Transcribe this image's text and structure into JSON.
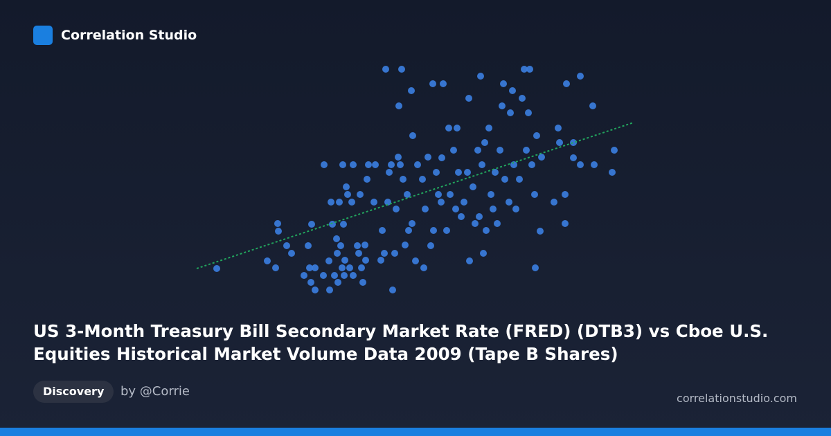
{
  "brand": "Correlation Studio",
  "tag": "Discovery",
  "author": "by @Corrie",
  "site": "correlationstudio.com",
  "chart_data": {
    "type": "scatter",
    "title": "US 3-Month Treasury Bill Secondary Market Rate (FRED) (DTB3) vs Cboe U.S. Equities Historical Market Volume Data 2009 (Tape B Shares)",
    "color": "#3b7ddd",
    "xlim": [
      0,
      640
    ],
    "ylim": [
      0,
      340
    ],
    "x": [
      33,
      106,
      118,
      121,
      122,
      134,
      141,
      159,
      165,
      167,
      169,
      170,
      175,
      175,
      187,
      188,
      195,
      196,
      198,
      200,
      203,
      206,
      207,
      208,
      210,
      212,
      214,
      215,
      216,
      217,
      218,
      220,
      222,
      225,
      228,
      230,
      230,
      236,
      238,
      240,
      242,
      244,
      247,
      248,
      250,
      252,
      260,
      262,
      270,
      272,
      275,
      277,
      280,
      282,
      285,
      287,
      290,
      292,
      295,
      296,
      298,
      300,
      302,
      305,
      308,
      310,
      314,
      315,
      316,
      320,
      323,
      330,
      332,
      334,
      338,
      342,
      345,
      346,
      350,
      353,
      357,
      358,
      360,
      365,
      368,
      370,
      375,
      378,
      380,
      382,
      386,
      390,
      395,
      397,
      398,
      403,
      406,
      410,
      412,
      414,
      416,
      418,
      420,
      422,
      426,
      429,
      432,
      435,
      438,
      442,
      445,
      447,
      449,
      455,
      457,
      460,
      462,
      465,
      470,
      474,
      477,
      480,
      483,
      485,
      488,
      492,
      493,
      495,
      500,
      502,
      520,
      526,
      528,
      536,
      536,
      538,
      548,
      548,
      558,
      558,
      576,
      578,
      604,
      607
    ],
    "values": [
      42,
      53,
      43,
      107,
      96,
      75,
      64,
      32,
      75,
      43,
      22,
      106,
      43,
      11,
      32,
      192,
      53,
      11,
      138,
      106,
      32,
      85,
      64,
      22,
      138,
      75,
      43,
      192,
      106,
      32,
      54,
      160,
      149,
      43,
      138,
      192,
      32,
      75,
      64,
      149,
      43,
      22,
      76,
      54,
      171,
      192,
      138,
      192,
      54,
      97,
      64,
      330,
      138,
      181,
      192,
      11,
      64,
      128,
      203,
      277,
      192,
      330,
      171,
      76,
      149,
      97,
      299,
      107,
      234,
      53,
      192,
      171,
      43,
      128,
      203,
      75,
      309,
      97,
      181,
      149,
      138,
      202,
      309,
      97,
      245,
      149,
      213,
      128,
      245,
      181,
      117,
      138,
      181,
      288,
      53,
      160,
      107,
      213,
      117,
      320,
      192,
      64,
      224,
      97,
      245,
      149,
      128,
      181,
      107,
      213,
      277,
      309,
      171,
      138,
      267,
      299,
      192,
      128,
      171,
      288,
      330,
      213,
      267,
      330,
      192,
      149,
      43,
      234,
      96,
      203,
      138,
      245,
      224,
      149,
      107,
      309,
      224,
      202,
      320,
      192,
      277,
      192,
      181,
      213
    ],
    "trend": {
      "color": "#22a65e",
      "x": [
        4,
        635
      ],
      "values": [
        42,
        253
      ]
    }
  }
}
